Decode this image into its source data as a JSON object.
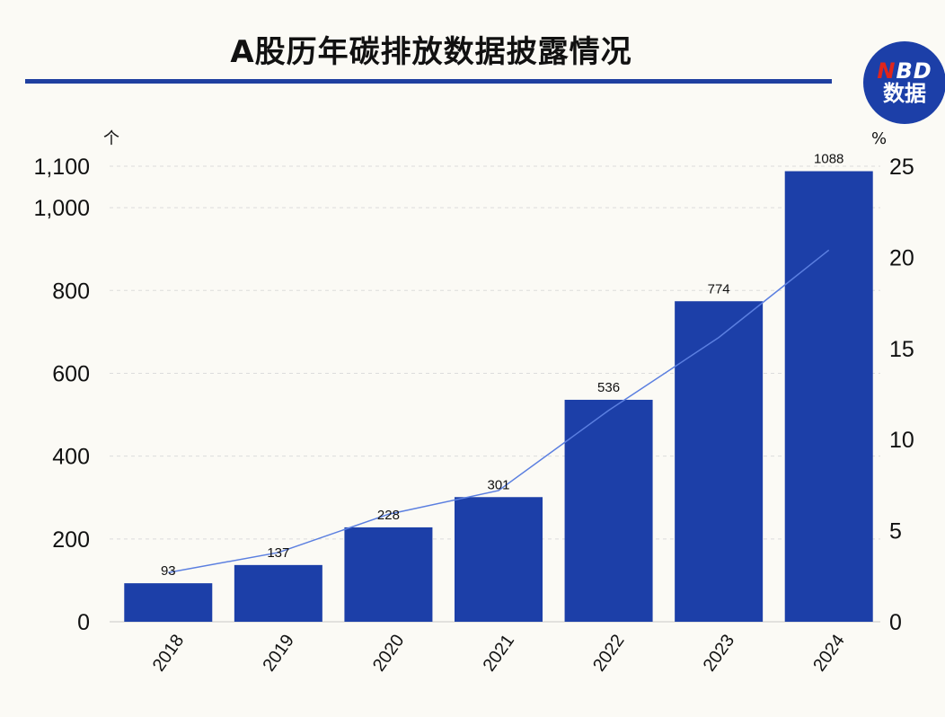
{
  "header": {
    "title": "A股历年碳排放数据披露情况",
    "logo_line1_n": "N",
    "logo_line1_rest": "BD",
    "logo_line2": "数据"
  },
  "colors": {
    "bar": "#1c3fa8",
    "line": "#5b7fe0",
    "rule": "#1f3fa0"
  },
  "chart_data": {
    "type": "bar",
    "categories": [
      "2018",
      "2019",
      "2020",
      "2021",
      "2022",
      "2023",
      "2024"
    ],
    "series": [
      {
        "values": [
          93,
          137,
          228,
          301,
          536,
          774,
          1088
        ],
        "axis": "left",
        "kind": "bar"
      },
      {
        "values": [
          2.7,
          3.8,
          5.9,
          7.2,
          11.6,
          15.6,
          20.4
        ],
        "axis": "right",
        "kind": "line"
      }
    ],
    "y_left": {
      "unit": "个",
      "ticks": [
        "0",
        "200",
        "400",
        "600",
        "800",
        "1,000",
        "1,100"
      ],
      "tick_values": [
        0,
        200,
        400,
        600,
        800,
        1000,
        1100
      ],
      "ylim": [
        0,
        1100
      ]
    },
    "y_right": {
      "unit": "%",
      "ticks": [
        "0",
        "5",
        "10",
        "15",
        "20",
        "25"
      ],
      "tick_values": [
        0,
        5,
        10,
        15,
        20,
        25
      ],
      "ylim": [
        0,
        25
      ]
    },
    "grid": "horizontal dashed",
    "data_labels": [
      "93",
      "137",
      "228",
      "301",
      "536",
      "774",
      "1088"
    ]
  }
}
